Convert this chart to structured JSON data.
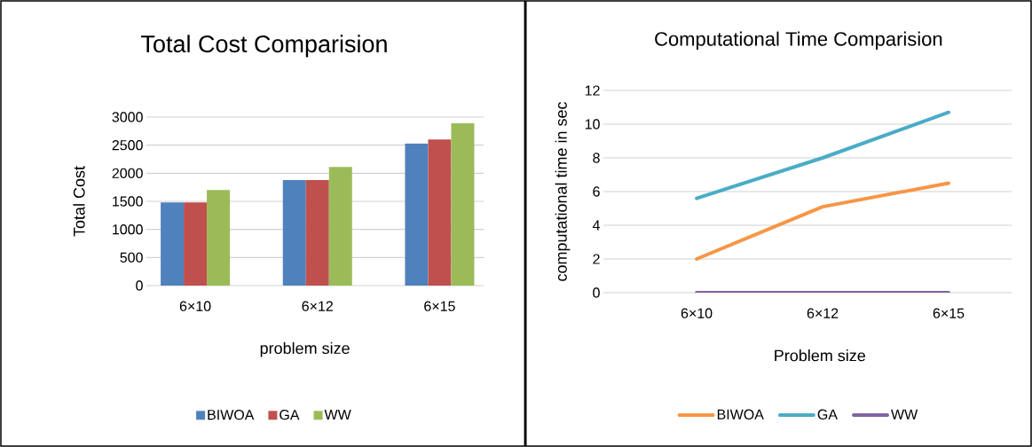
{
  "chart_data": [
    {
      "type": "bar",
      "title": "Total Cost Comparision",
      "xlabel": "problem size",
      "ylabel": "Total Cost",
      "categories": [
        "6×10",
        "6×12",
        "6×15"
      ],
      "series": [
        {
          "name": "BIWOA",
          "color": "#4f81bd",
          "values": [
            1480,
            1880,
            2530
          ]
        },
        {
          "name": "GA",
          "color": "#c0504d",
          "values": [
            1480,
            1880,
            2600
          ]
        },
        {
          "name": "WW",
          "color": "#9bbb59",
          "values": [
            1700,
            2110,
            2890
          ]
        }
      ],
      "ylim": [
        0,
        3000
      ],
      "yticks": [
        0,
        500,
        1000,
        1500,
        2000,
        2500,
        3000
      ],
      "grid": "y",
      "legend": "bottom"
    },
    {
      "type": "line",
      "title": "Computational Time Comparision",
      "xlabel": "Problem size",
      "ylabel": "computational time in sec",
      "categories": [
        "6×10",
        "6×12",
        "6×15"
      ],
      "series": [
        {
          "name": "BIWOA",
          "color": "#f79646",
          "values": [
            2.0,
            5.1,
            6.5
          ]
        },
        {
          "name": "GA",
          "color": "#4bacc6",
          "values": [
            5.6,
            8.0,
            10.7
          ]
        },
        {
          "name": "WW",
          "color": "#8064a2",
          "values": [
            0,
            0,
            0
          ]
        }
      ],
      "ylim": [
        0,
        12
      ],
      "yticks": [
        0,
        2,
        4,
        6,
        8,
        10,
        12
      ],
      "grid": "y",
      "legend": "bottom"
    }
  ]
}
